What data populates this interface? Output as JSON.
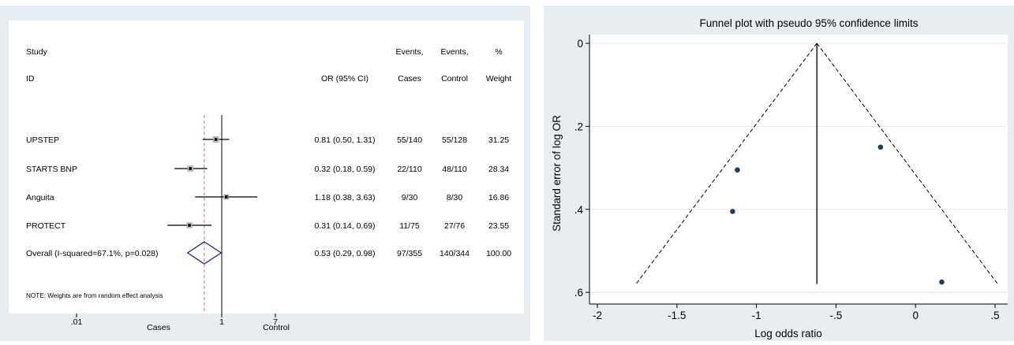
{
  "forest": {
    "headers": {
      "study": "Study",
      "id": "ID",
      "or": "OR (95% CI)",
      "events1": "Events,",
      "cases": "Cases",
      "events2": "Events,",
      "control": "Control",
      "pct": "%",
      "weight": "Weight"
    },
    "note": "NOTE: Weights are from random effect analysis",
    "axis": {
      "ticks": [
        ".01",
        "1",
        "7"
      ],
      "left_label": "Cases",
      "right_label": "Control"
    }
  },
  "chart_data": [
    {
      "type": "forest",
      "scale": "log",
      "xlim": [
        0.01,
        7
      ],
      "null_line": 1,
      "pooled_line": 0.53,
      "studies": [
        {
          "id": "UPSTEP",
          "or": 0.81,
          "lo": 0.5,
          "hi": 1.31,
          "or_text": "0.81 (0.50, 1.31)",
          "cases": "55/140",
          "control": "55/128",
          "weight": "31.25"
        },
        {
          "id": "STARTS BNP",
          "or": 0.32,
          "lo": 0.18,
          "hi": 0.59,
          "or_text": "0.32 (0.18, 0.59)",
          "cases": "22/110",
          "control": "48/110",
          "weight": "28.34"
        },
        {
          "id": "Anguita",
          "or": 1.18,
          "lo": 0.38,
          "hi": 3.63,
          "or_text": "1.18 (0.38, 3.63)",
          "cases": "9/30",
          "control": "8/30",
          "weight": "16.86"
        },
        {
          "id": "PROTECT",
          "or": 0.31,
          "lo": 0.14,
          "hi": 0.69,
          "or_text": "0.31 (0.14, 0.69)",
          "cases": "11/75",
          "control": "27/76",
          "weight": "23.55"
        }
      ],
      "overall": {
        "id": "Overall  (I-squared=67.1%, p=0.028)",
        "or": 0.53,
        "lo": 0.29,
        "hi": 0.98,
        "or_text": "0.53 (0.29, 0.98)",
        "cases": "97/355",
        "control": "140/344",
        "weight": "100.00"
      }
    },
    {
      "type": "scatter",
      "title": "Funnel plot with pseudo 95% confidence limits",
      "xlabel": "Log odds ratio",
      "ylabel": "Standard error of log OR",
      "xlim": [
        -2,
        0.5
      ],
      "ylim": [
        0,
        0.6
      ],
      "y_reversed": true,
      "xticks": [
        "-2",
        "-1.5",
        "-1",
        "-.5",
        "0",
        ".5"
      ],
      "xtick_values": [
        -2,
        -1.5,
        -1,
        -0.5,
        0,
        0.5
      ],
      "yticks": [
        "0",
        ".2",
        ".4",
        ".6"
      ],
      "ytick_values": [
        0,
        0.2,
        0.4,
        0.6
      ],
      "pooled_estimate": -0.62,
      "se_max": 0.58,
      "points": [
        {
          "x": -0.22,
          "y": 0.25
        },
        {
          "x": -1.12,
          "y": 0.305
        },
        {
          "x": -1.15,
          "y": 0.405
        },
        {
          "x": 0.165,
          "y": 0.575
        }
      ]
    }
  ],
  "colors": {
    "panel_bg": "#e8edf2",
    "plot_bg": "#ffffff",
    "marker": "#1f3d6b",
    "diamond": "#1c2a86",
    "pooled_line": "#d9668a"
  }
}
